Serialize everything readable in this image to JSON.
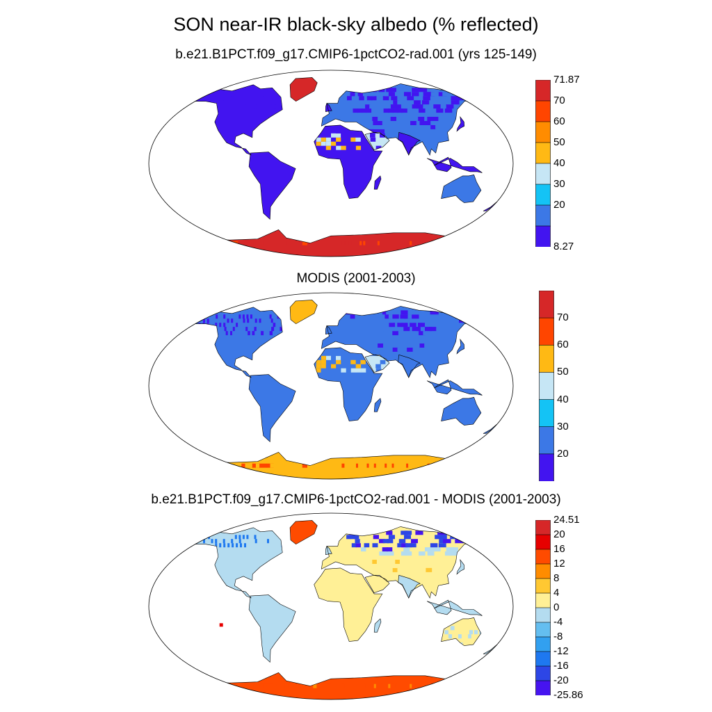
{
  "title": "SON near-IR black-sky albedo (% reflected)",
  "panels": [
    {
      "title": "b.e21.B1PCT.f09_g17.CMIP6-1pctCO2-rad.001 (yrs 125-149)",
      "colorbar": {
        "labels": [
          "71.87",
          "70",
          "60",
          "50",
          "40",
          "30",
          "20",
          "8.27"
        ],
        "colors": [
          "#d62728",
          "#ff4500",
          "#ff8c00",
          "#ffb914",
          "#c6e6f5",
          "#14c3f5",
          "#3c78e6",
          "#4214f0"
        ]
      }
    },
    {
      "title": "MODIS (2001-2003)",
      "colorbar": {
        "labels": [
          "70",
          "60",
          "50",
          "40",
          "30",
          "20"
        ],
        "colors": [
          "#d62728",
          "#ff4500",
          "#ffb914",
          "#c6e6f5",
          "#14c3f5",
          "#3c78e6",
          "#4214f0"
        ]
      }
    },
    {
      "title": "b.e21.B1PCT.f09_g17.CMIP6-1pctCO2-rad.001 - MODIS (2001-2003)",
      "colorbar": {
        "labels": [
          "24.51",
          "20",
          "16",
          "12",
          "8",
          "4",
          "0",
          "-4",
          "-8",
          "-12",
          "-16",
          "-20",
          "-25.86"
        ],
        "colors": [
          "#d62728",
          "#e60000",
          "#ff4b00",
          "#ff8c00",
          "#ffc832",
          "#fff096",
          "#b4dcf0",
          "#64bef0",
          "#32a0f0",
          "#1e78f0",
          "#2d46e6",
          "#4614f0"
        ]
      }
    }
  ]
}
